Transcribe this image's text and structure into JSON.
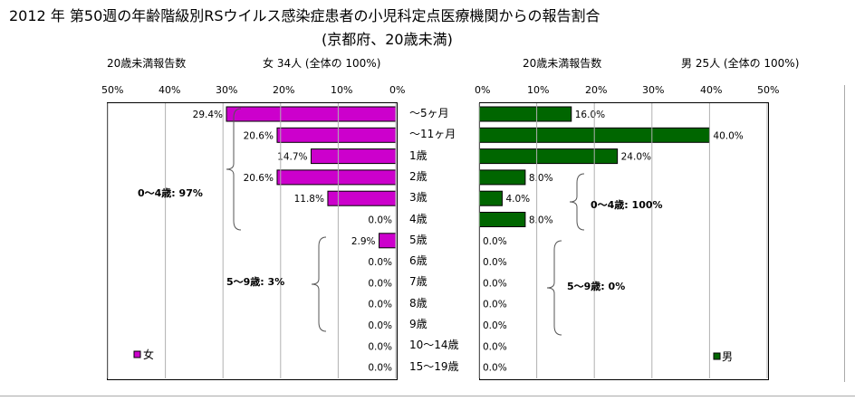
{
  "title": "2012 年 第50週の年齢階級別RSウイルス感染症患者の小児科定点医療機関からの報告割合",
  "subtitle": "(京都府、20歳未満)",
  "left_panel": {
    "header_count": "20歳未満報告数",
    "header_summary": "女 34人 (全体の 100%)",
    "ticks": [
      "50%",
      "40%",
      "30%",
      "20%",
      "10%",
      "0%"
    ],
    "legend": "女",
    "group1": "0〜4歳: 97%",
    "group2": "5〜9歳:  3%",
    "bar_color": "#cc00cc"
  },
  "right_panel": {
    "header_count": "20歳未満報告数",
    "header_summary": "男 25人 (全体の 100%)",
    "ticks": [
      "0%",
      "10%",
      "20%",
      "30%",
      "40%",
      "50%"
    ],
    "legend": "男",
    "group1": "0〜4歳: 100%",
    "group2": "5〜9歳:  0%",
    "bar_color": "#006600"
  },
  "chart_data": [
    {
      "type": "bar",
      "series": [
        {
          "name": "女",
          "values": [
            29.4,
            20.6,
            14.7,
            20.6,
            11.8,
            0.0,
            2.9,
            0.0,
            0.0,
            0.0,
            0.0,
            0.0,
            0.0
          ]
        }
      ],
      "categories": [
        "〜5ヶ月",
        "〜11ヶ月",
        "1歳",
        "2歳",
        "3歳",
        "4歳",
        "5歳",
        "6歳",
        "7歳",
        "8歳",
        "9歳",
        "10〜14歳",
        "15〜19歳"
      ],
      "value_labels": [
        "29.4%",
        "20.6%",
        "14.7%",
        "20.6%",
        "11.8%",
        "0.0%",
        "2.9%",
        "0.0%",
        "0.0%",
        "0.0%",
        "0.0%",
        "0.0%",
        "0.0%"
      ],
      "xlim": [
        0,
        50
      ],
      "orientation": "horizontal",
      "direction": "reversed"
    },
    {
      "type": "bar",
      "series": [
        {
          "name": "男",
          "values": [
            16.0,
            40.0,
            24.0,
            8.0,
            4.0,
            8.0,
            0.0,
            0.0,
            0.0,
            0.0,
            0.0,
            0.0,
            0.0
          ]
        }
      ],
      "categories": [
        "〜5ヶ月",
        "〜11ヶ月",
        "1歳",
        "2歳",
        "3歳",
        "4歳",
        "5歳",
        "6歳",
        "7歳",
        "8歳",
        "9歳",
        "10〜14歳",
        "15〜19歳"
      ],
      "value_labels": [
        "16.0%",
        "40.0%",
        "24.0%",
        "8.0%",
        "4.0%",
        "8.0%",
        "0.0%",
        "0.0%",
        "0.0%",
        "0.0%",
        "0.0%",
        "0.0%",
        "0.0%"
      ],
      "xlim": [
        0,
        50
      ],
      "orientation": "horizontal",
      "direction": "normal"
    }
  ]
}
